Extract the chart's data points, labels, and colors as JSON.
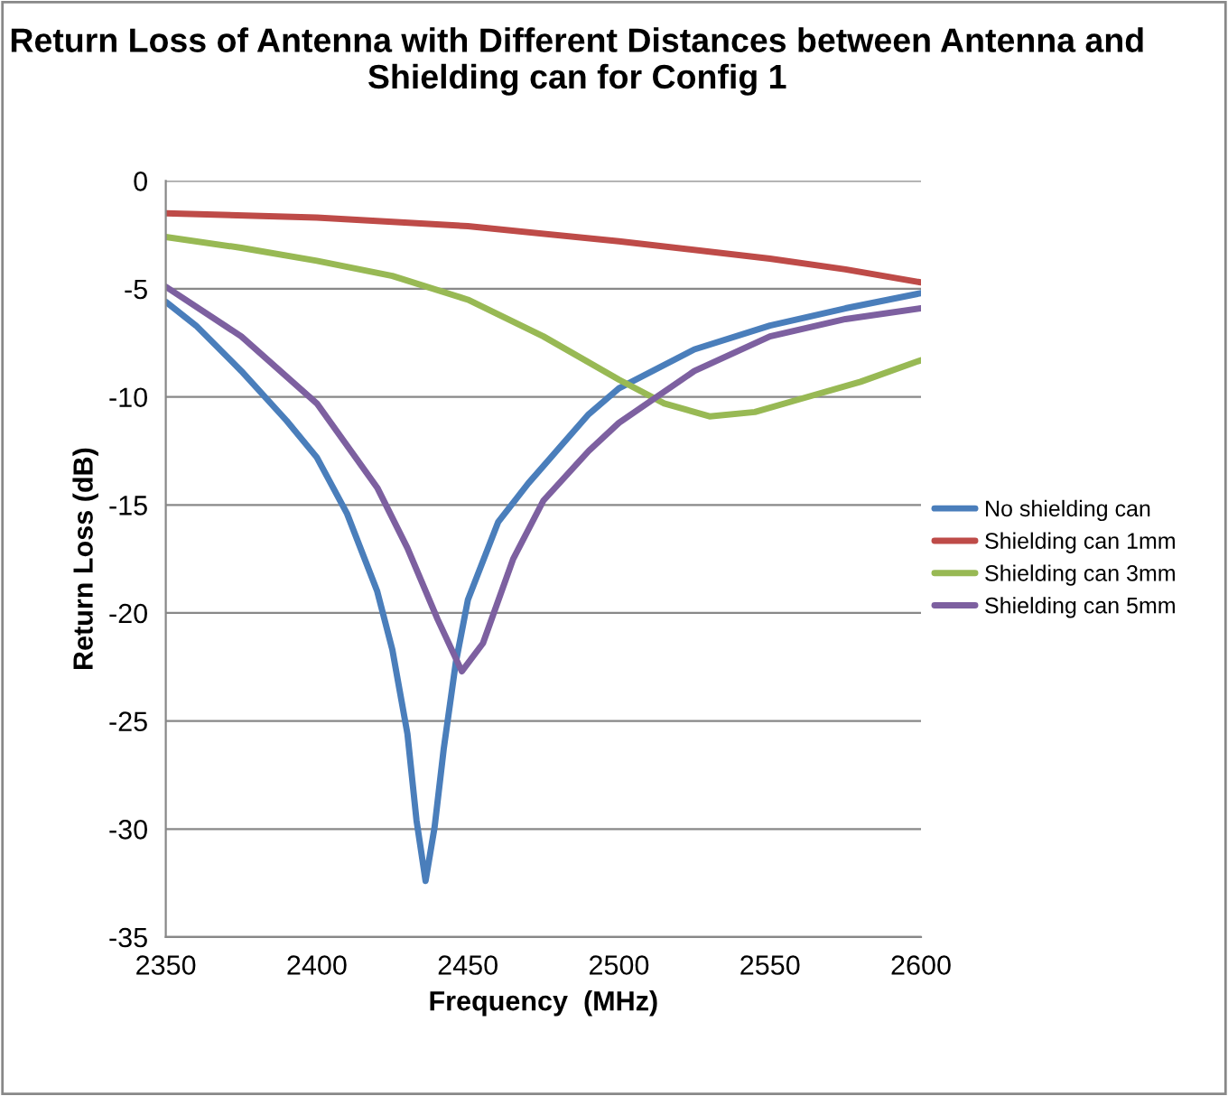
{
  "chart_data": {
    "type": "line",
    "title": "Return Loss of Antenna with Different Distances between Antenna and Shielding can for Config 1",
    "xlabel": "Frequency  (MHz)",
    "ylabel": "Return Loss (dB)",
    "xlim": [
      2350,
      2600
    ],
    "xticks": [
      2350,
      2400,
      2450,
      2500,
      2550,
      2600
    ],
    "ylim": [
      -35,
      0
    ],
    "yticks": [
      -35,
      -30,
      -25,
      -20,
      -15,
      -10,
      -5,
      0
    ],
    "grid": "y",
    "legend": "right",
    "marker": "none",
    "line_style": "solid",
    "series": [
      {
        "name": "No shielding can",
        "color": "#4a7ebb",
        "x": [
          2350,
          2360,
          2375,
          2390,
          2400,
          2410,
          2420,
          2425,
          2430,
          2433,
          2436,
          2439,
          2442,
          2446,
          2450,
          2460,
          2470,
          2480,
          2490,
          2500,
          2525,
          2550,
          2575,
          2600
        ],
        "values": [
          -5.6,
          -6.7,
          -8.8,
          -11.1,
          -12.8,
          -15.4,
          -19,
          -21.7,
          -25.6,
          -29.6,
          -32.4,
          -29.9,
          -26.3,
          -22.3,
          -19.4,
          -15.8,
          -14,
          -12.4,
          -10.8,
          -9.6,
          -7.8,
          -6.7,
          -5.9,
          -5.2
        ]
      },
      {
        "name": "Shielding can 1mm",
        "color": "#be4b48",
        "x": [
          2350,
          2400,
          2450,
          2500,
          2550,
          2575,
          2600
        ],
        "values": [
          -1.5,
          -1.7,
          -2.1,
          -2.8,
          -3.6,
          -4.1,
          -4.7
        ]
      },
      {
        "name": "Shielding can 3mm",
        "color": "#98b954",
        "x": [
          2350,
          2375,
          2400,
          2425,
          2450,
          2475,
          2500,
          2515,
          2530,
          2545,
          2560,
          2580,
          2600
        ],
        "values": [
          -2.6,
          -3.1,
          -3.7,
          -4.4,
          -5.5,
          -7.2,
          -9.2,
          -10.3,
          -10.9,
          -10.7,
          -10.1,
          -9.3,
          -8.3
        ]
      },
      {
        "name": "Shielding can 5mm",
        "color": "#7d60a0",
        "x": [
          2350,
          2375,
          2400,
          2420,
          2430,
          2440,
          2448,
          2455,
          2465,
          2475,
          2490,
          2500,
          2525,
          2550,
          2575,
          2600
        ],
        "values": [
          -4.9,
          -7.2,
          -10.3,
          -14.2,
          -17,
          -20.3,
          -22.7,
          -21.4,
          -17.5,
          -14.8,
          -12.5,
          -11.2,
          -8.8,
          -7.2,
          -6.4,
          -5.9
        ]
      }
    ]
  }
}
